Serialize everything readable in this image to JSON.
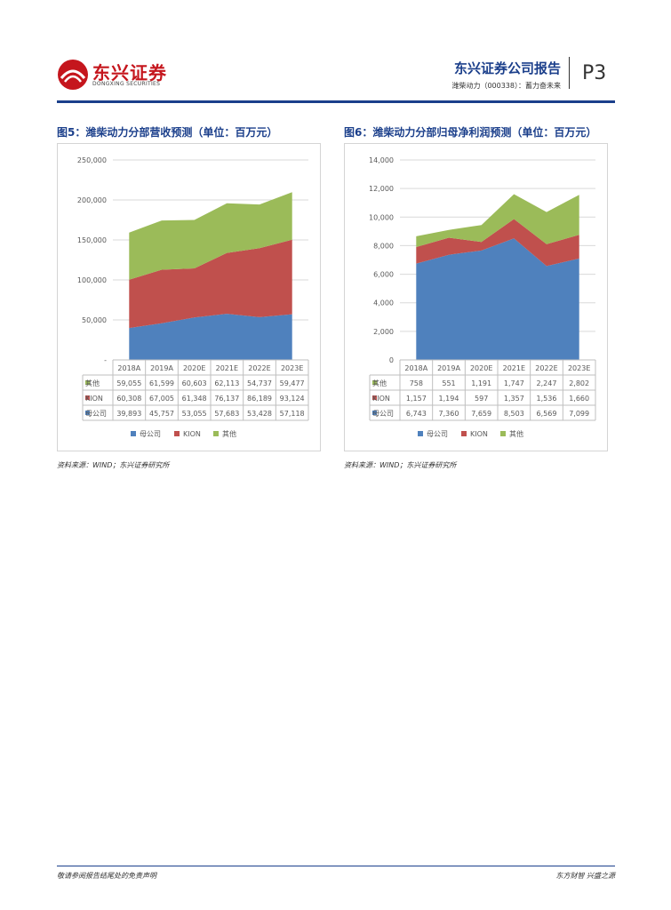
{
  "header": {
    "brand_cn": "东兴证券",
    "brand_en": "DONGXING SECURITIES",
    "report_type": "东兴证券公司报告",
    "subtitle": "潍柴动力（000338）：蓄力奋未来",
    "page": "P3"
  },
  "figures": [
    {
      "title": "图5：潍柴动力分部营收预测（单位：百万元）",
      "source": "资料来源：WIND；东兴证券研究所"
    },
    {
      "title": "图6：潍柴动力分部归母净利润预测（单位：百万元）",
      "source": "资料来源：WIND；东兴证券研究所"
    }
  ],
  "colors": {
    "parent": "#4f81bd",
    "kion": "#c0504d",
    "other": "#9bbb59",
    "accent": "#1b3f8b",
    "brand": "#c5161d"
  },
  "chart_data": [
    {
      "type": "area",
      "stacked": true,
      "title": "图5：潍柴动力分部营收预测（单位：百万元）",
      "categories": [
        "2018A",
        "2019A",
        "2020E",
        "2021E",
        "2022E",
        "2023E"
      ],
      "series": [
        {
          "name": "母公司",
          "values": [
            39893,
            45757,
            53055,
            57683,
            53428,
            57118
          ],
          "labels": [
            "39,893",
            "45,757",
            "53,055",
            "57,683",
            "53,428",
            "57,118"
          ]
        },
        {
          "name": "KION",
          "values": [
            60308,
            67005,
            61348,
            76137,
            86189,
            93124
          ],
          "labels": [
            "60,308",
            "67,005",
            "61,348",
            "76,137",
            "86,189",
            "93,124"
          ]
        },
        {
          "name": "其他",
          "values": [
            59055,
            61599,
            60603,
            62113,
            54737,
            59477
          ],
          "labels": [
            "59,055",
            "61,599",
            "60,603",
            "62,113",
            "54,737",
            "59,477"
          ]
        }
      ],
      "table_order": [
        "其他",
        "KION",
        "母公司"
      ],
      "ylim": [
        0,
        250000
      ],
      "yticks": [
        0,
        50000,
        100000,
        150000,
        200000,
        250000
      ],
      "ytick_labels": [
        "-",
        "50,000",
        "100,000",
        "150,000",
        "200,000",
        "250,000"
      ],
      "legend": [
        "母公司",
        "KION",
        "其他"
      ],
      "legend_position": "bottom",
      "grid": true
    },
    {
      "type": "area",
      "stacked": true,
      "title": "图6：潍柴动力分部归母净利润预测（单位：百万元）",
      "categories": [
        "2018A",
        "2019A",
        "2020E",
        "2021E",
        "2022E",
        "2023E"
      ],
      "series": [
        {
          "name": "母公司",
          "values": [
            6743,
            7360,
            7659,
            8503,
            6569,
            7099
          ],
          "labels": [
            "6,743",
            "7,360",
            "7,659",
            "8,503",
            "6,569",
            "7,099"
          ]
        },
        {
          "name": "KION",
          "values": [
            1157,
            1194,
            597,
            1357,
            1536,
            1660
          ],
          "labels": [
            "1,157",
            "1,194",
            "597",
            "1,357",
            "1,536",
            "1,660"
          ]
        },
        {
          "name": "其他",
          "values": [
            758,
            551,
            1191,
            1747,
            2247,
            2802
          ],
          "labels": [
            "758",
            "551",
            "1,191",
            "1,747",
            "2,247",
            "2,802"
          ]
        }
      ],
      "table_order": [
        "其他",
        "KION",
        "母公司"
      ],
      "ylim": [
        0,
        14000
      ],
      "yticks": [
        0,
        2000,
        4000,
        6000,
        8000,
        10000,
        12000,
        14000
      ],
      "ytick_labels": [
        "0",
        "2,000",
        "4,000",
        "6,000",
        "8,000",
        "10,000",
        "12,000",
        "14,000"
      ],
      "legend": [
        "母公司",
        "KION",
        "其他"
      ],
      "legend_position": "bottom",
      "grid": true
    }
  ],
  "footer": {
    "disclaimer": "敬请参阅报告结尾处的免责声明",
    "slogan": "东方财智  兴盛之源"
  }
}
